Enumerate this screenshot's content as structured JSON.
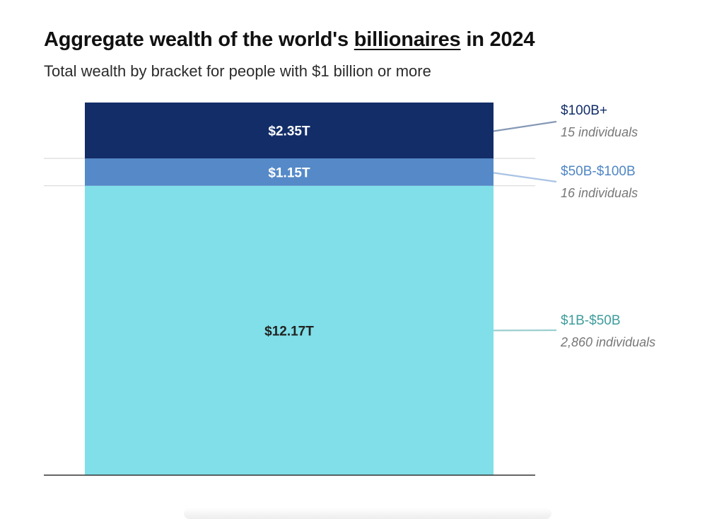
{
  "header": {
    "title_pre": "Aggregate wealth of the world's ",
    "title_link": "billionaires",
    "title_post": " in 2024",
    "subtitle": "Total wealth by bracket for people with $1 billion or more"
  },
  "chart_data": {
    "type": "bar",
    "stacked": true,
    "unit": "trillion USD",
    "series": [
      {
        "name": "$1B-$50B",
        "value": 12.17,
        "label": "$12.17T",
        "count_label": "2,860 individuals",
        "color": "#80dfe8",
        "text_color": "#222222",
        "legend_color": "#3f9c9c",
        "leader_color": "#9ccfcf"
      },
      {
        "name": "$50B-$100B",
        "value": 1.15,
        "label": "$1.15T",
        "count_label": "16 individuals",
        "color": "#5589c8",
        "text_color": "#ffffff",
        "legend_color": "#4f86c4",
        "leader_color": "#a9c3e3"
      },
      {
        "name": "$100B+",
        "value": 2.35,
        "label": "$2.35T",
        "count_label": "15 individuals",
        "color": "#122d68",
        "text_color": "#ffffff",
        "legend_color": "#122d68",
        "leader_color": "#8598b5"
      }
    ],
    "total": 15.67,
    "grid": false,
    "legend_position": "right"
  }
}
